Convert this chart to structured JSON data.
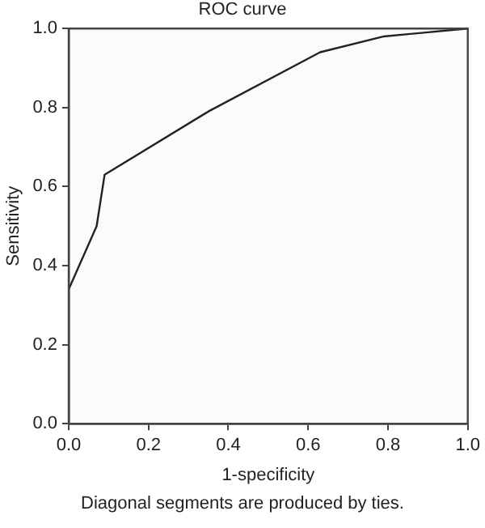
{
  "chart_data": {
    "type": "line",
    "title": "ROC curve",
    "xlabel": "1-specificity",
    "ylabel": "Sensitivity",
    "x": [
      0,
      0,
      0.07,
      0.09,
      0.35,
      0.63,
      0.79,
      1
    ],
    "series": [
      {
        "color": "#222222",
        "values": [
          0,
          0.34,
          0.5,
          0.63,
          0.79,
          0.94,
          0.98,
          1
        ]
      }
    ],
    "xlim": [
      0,
      1
    ],
    "xticks": [
      {
        "value": 0,
        "label": "0.0"
      },
      0.2,
      0.4,
      0.6,
      0.8,
      {
        "value": 1,
        "label": "1.0"
      }
    ],
    "ylim": [
      0,
      1
    ],
    "yticks": [
      {
        "value": 0,
        "label": "0.0"
      },
      0.2,
      0.4,
      0.6,
      0.8,
      {
        "value": 1,
        "label": "1.0"
      }
    ],
    "grid": false,
    "legend": false,
    "marker": "none",
    "line_style": "solid",
    "annotations": [
      "Diagonal segments are produced by ties."
    ]
  }
}
